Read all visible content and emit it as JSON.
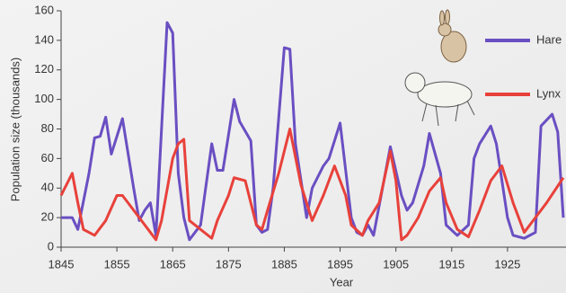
{
  "chart_data": {
    "type": "line",
    "x_label": "Year",
    "y_label": "Population size (thousands)",
    "xlim": [
      1845,
      1935
    ],
    "xticks": [
      1845,
      1855,
      1865,
      1875,
      1885,
      1895,
      1905,
      1915,
      1925
    ],
    "ylim": [
      0,
      160
    ],
    "yticks": [
      0,
      20,
      40,
      60,
      80,
      100,
      120,
      140,
      160
    ],
    "series": [
      {
        "name": "Hare",
        "color": "#6a4fc2",
        "x": [
          1845,
          1847,
          1848,
          1850,
          1851,
          1852,
          1853,
          1854,
          1856,
          1858,
          1859,
          1860,
          1861,
          1862,
          1864,
          1865,
          1866,
          1867,
          1868,
          1869,
          1870,
          1872,
          1873,
          1874,
          1876,
          1877,
          1879,
          1880,
          1881,
          1882,
          1883,
          1885,
          1886,
          1887,
          1889,
          1890,
          1892,
          1893,
          1895,
          1897,
          1898,
          1899,
          1900,
          1901,
          1904,
          1906,
          1907,
          1908,
          1910,
          1911,
          1913,
          1914,
          1916,
          1918,
          1919,
          1920,
          1922,
          1923,
          1925,
          1926,
          1928,
          1930,
          1931,
          1933,
          1934,
          1935
        ],
        "values": [
          20,
          20,
          12,
          50,
          74,
          75,
          88,
          63,
          87,
          40,
          18,
          25,
          30,
          8,
          152,
          145,
          50,
          20,
          5,
          10,
          15,
          70,
          52,
          52,
          100,
          85,
          72,
          15,
          10,
          12,
          40,
          135,
          134,
          70,
          20,
          40,
          55,
          60,
          84,
          20,
          10,
          8,
          15,
          8,
          68,
          35,
          25,
          30,
          55,
          77,
          50,
          15,
          8,
          15,
          60,
          70,
          82,
          70,
          20,
          8,
          6,
          10,
          82,
          90,
          78,
          20
        ]
      },
      {
        "name": "Lynx",
        "color": "#e8413b",
        "x": [
          1845,
          1847,
          1848,
          1849,
          1851,
          1853,
          1855,
          1856,
          1858,
          1861,
          1862,
          1863,
          1865,
          1866,
          1867,
          1868,
          1870,
          1872,
          1873,
          1875,
          1876,
          1878,
          1880,
          1881,
          1882,
          1884,
          1886,
          1888,
          1889,
          1890,
          1892,
          1894,
          1896,
          1897,
          1899,
          1900,
          1902,
          1904,
          1905,
          1906,
          1907,
          1909,
          1911,
          1913,
          1914,
          1916,
          1918,
          1920,
          1922,
          1924,
          1926,
          1928,
          1930,
          1932,
          1935
        ],
        "values": [
          35,
          50,
          30,
          12,
          8,
          18,
          35,
          35,
          25,
          10,
          5,
          18,
          60,
          70,
          73,
          18,
          12,
          6,
          18,
          35,
          47,
          45,
          15,
          12,
          25,
          50,
          80,
          42,
          30,
          18,
          35,
          55,
          35,
          15,
          8,
          18,
          30,
          65,
          45,
          5,
          8,
          20,
          38,
          47,
          30,
          12,
          7,
          25,
          45,
          55,
          30,
          10,
          20,
          30,
          47
        ]
      }
    ]
  }
}
